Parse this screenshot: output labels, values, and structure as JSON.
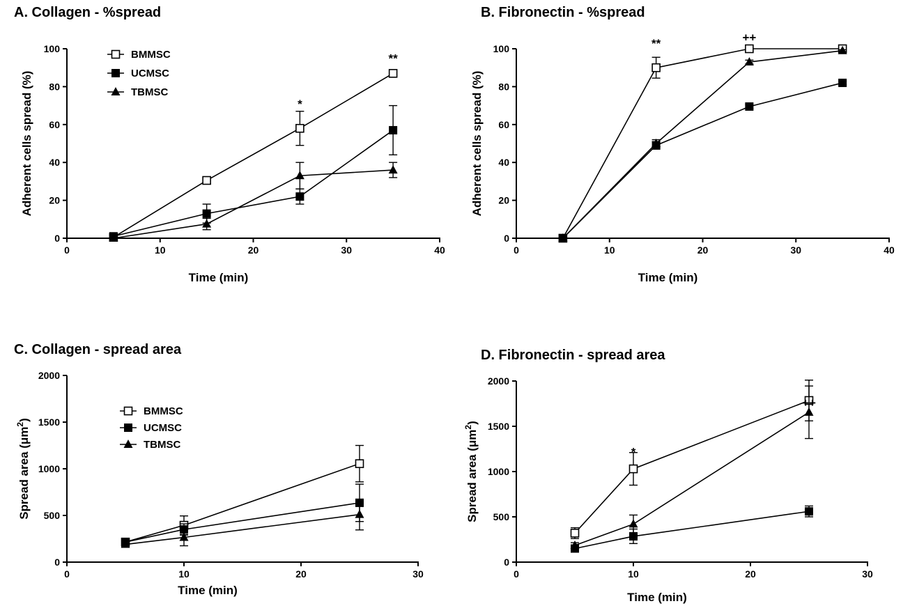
{
  "chart_data": [
    {
      "type": "line",
      "title": "A. Collagen - %spread",
      "xlabel": "Time (min)",
      "ylabel": "Adherent cells spread (%)",
      "xlim": [
        0,
        40
      ],
      "ylim": [
        0,
        100
      ],
      "xticks": [
        "0",
        "10",
        "20",
        "30",
        "40"
      ],
      "yticks": [
        "0",
        "20",
        "40",
        "60",
        "80",
        "100"
      ],
      "grid": false,
      "legend": "top-left",
      "legend_entries": [
        "BMMSC",
        "UCMSC",
        "TBMSC"
      ],
      "series": [
        {
          "name": "BMMSC",
          "marker": "open-square",
          "x": [
            5,
            15,
            25,
            35
          ],
          "values": [
            0.5,
            30.5,
            58,
            87
          ],
          "errors": [
            0,
            1.5,
            9,
            1
          ]
        },
        {
          "name": "UCMSC",
          "marker": "filled-square",
          "x": [
            5,
            15,
            25,
            35
          ],
          "values": [
            1,
            13,
            22,
            57
          ],
          "errors": [
            1,
            5,
            4,
            13
          ]
        },
        {
          "name": "TBMSC",
          "marker": "filled-triangle",
          "x": [
            5,
            15,
            25,
            35
          ],
          "values": [
            0,
            7.5,
            33,
            36
          ],
          "errors": [
            0,
            3,
            7,
            4
          ]
        }
      ],
      "annotations": [
        {
          "text": "*",
          "x": 25,
          "y": 71
        },
        {
          "text": "**",
          "x": 35,
          "y": 95
        }
      ]
    },
    {
      "type": "line",
      "title": "B. Fibronectin - %spread",
      "xlabel": "Time (min)",
      "ylabel": "Adherent cells spread (%)",
      "xlim": [
        0,
        40
      ],
      "ylim": [
        0,
        100
      ],
      "xticks": [
        "0",
        "10",
        "20",
        "30",
        "40"
      ],
      "yticks": [
        "0",
        "20",
        "40",
        "60",
        "80",
        "100"
      ],
      "grid": false,
      "series": [
        {
          "name": "BMMSC",
          "marker": "open-square",
          "x": [
            5,
            15,
            25,
            35
          ],
          "values": [
            0,
            90,
            100,
            100
          ],
          "errors": [
            0,
            5.5,
            0.5,
            0.5
          ]
        },
        {
          "name": "UCMSC",
          "marker": "filled-square",
          "x": [
            5,
            15,
            25,
            35
          ],
          "values": [
            0,
            49,
            69.5,
            82
          ],
          "errors": [
            0,
            2,
            1,
            1
          ]
        },
        {
          "name": "TBMSC",
          "marker": "filled-triangle",
          "x": [
            5,
            15,
            25,
            35
          ],
          "values": [
            0,
            50,
            93,
            99
          ],
          "errors": [
            0,
            2,
            1,
            0.5
          ]
        }
      ],
      "annotations": [
        {
          "text": "**",
          "x": 15,
          "y": 103
        },
        {
          "text": "++",
          "x": 25,
          "y": 106
        }
      ]
    },
    {
      "type": "line",
      "title": "C. Collagen  - spread area",
      "xlabel": "Time (min)",
      "ylabel_main": "Spread area (μm",
      "ylabel_sup": "2",
      "ylabel_end": ")",
      "xlim": [
        0,
        30
      ],
      "ylim": [
        0,
        2000
      ],
      "xticks": [
        "0",
        "10",
        "20",
        "30"
      ],
      "yticks": [
        "0",
        "500",
        "1000",
        "1500",
        "2000"
      ],
      "grid": false,
      "legend": "center-left",
      "legend_entries": [
        "BMMSC",
        "UCMSC",
        "TBMSC"
      ],
      "series": [
        {
          "name": "BMMSC",
          "marker": "open-square",
          "x": [
            5,
            10,
            25
          ],
          "values": [
            215,
            395,
            1055
          ],
          "errors": [
            25,
            100,
            195
          ]
        },
        {
          "name": "UCMSC",
          "marker": "filled-square",
          "x": [
            5,
            10,
            25
          ],
          "values": [
            215,
            350,
            635
          ],
          "errors": [
            25,
            60,
            200
          ]
        },
        {
          "name": "TBMSC",
          "marker": "filled-triangle",
          "x": [
            5,
            10,
            25
          ],
          "values": [
            190,
            265,
            510
          ],
          "errors": [
            25,
            90,
            165
          ]
        }
      ],
      "annotations": []
    },
    {
      "type": "line",
      "title": "D. Fibronectin - spread area",
      "xlabel": "Time (min)",
      "ylabel_main": "Spread area (μm",
      "ylabel_sup": "2",
      "ylabel_end": ")",
      "xlim": [
        0,
        30
      ],
      "ylim": [
        0,
        2000
      ],
      "xticks": [
        "0",
        "10",
        "20",
        "30"
      ],
      "yticks": [
        "0",
        "500",
        "1000",
        "1500",
        "2000"
      ],
      "grid": false,
      "series": [
        {
          "name": "BMMSC",
          "marker": "open-square",
          "x": [
            5,
            10,
            25
          ],
          "values": [
            320,
            1030,
            1785
          ],
          "errors": [
            60,
            180,
            225
          ]
        },
        {
          "name": "UCMSC",
          "marker": "filled-square",
          "x": [
            5,
            10,
            25
          ],
          "values": [
            150,
            285,
            560
          ],
          "errors": [
            30,
            80,
            60
          ]
        },
        {
          "name": "TBMSC",
          "marker": "filled-triangle",
          "x": [
            5,
            10,
            25
          ],
          "values": [
            185,
            420,
            1655
          ],
          "errors": [
            30,
            100,
            290
          ]
        }
      ],
      "annotations": [
        {
          "text": "*",
          "x": 10,
          "y": 1220
        },
        {
          "text": "++",
          "x": 25,
          "y": 1760
        }
      ]
    }
  ]
}
